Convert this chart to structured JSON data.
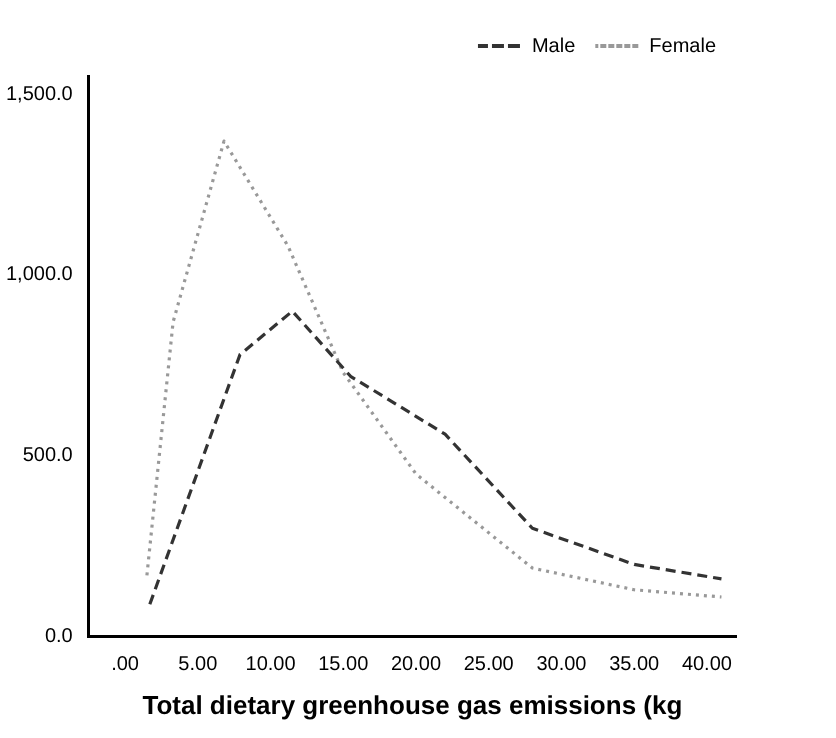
{
  "chart_data": {
    "type": "line",
    "xlabel": "Total dietary greenhouse gas emissions (kg",
    "xlim": [
      -2.5,
      42
    ],
    "xticks": [
      {
        "value": 0,
        "label": ".00"
      },
      {
        "value": 5,
        "label": "5.00"
      },
      {
        "value": 10,
        "label": "10.00"
      },
      {
        "value": 15,
        "label": "15.00"
      },
      {
        "value": 20,
        "label": "20.00"
      },
      {
        "value": 25,
        "label": "25.00"
      },
      {
        "value": 30,
        "label": "30.00"
      },
      {
        "value": 35,
        "label": "35.00"
      },
      {
        "value": 40,
        "label": "40.00"
      }
    ],
    "ylim": [
      0,
      1550
    ],
    "yticks": [
      {
        "value": 0,
        "label": "0.0"
      },
      {
        "value": 500,
        "label": "500.0"
      },
      {
        "value": 1000,
        "label": "1,000.0"
      },
      {
        "value": 1500,
        "label": "1,500.0"
      }
    ],
    "grid": false,
    "legend": "top right",
    "marker": "none",
    "series": [
      {
        "name": "Male",
        "color": "#333333",
        "line_style": "dashed",
        "x": [
          1.7,
          7.9,
          11.5,
          15.5,
          22,
          28,
          35,
          41
        ],
        "values": [
          90,
          780,
          900,
          720,
          560,
          300,
          200,
          160
        ]
      },
      {
        "name": "Female",
        "color": "#999999",
        "line_style": "dotted",
        "x": [
          1.5,
          3.3,
          6.8,
          11.2,
          15,
          20,
          28,
          35,
          41
        ],
        "values": [
          170,
          870,
          1370,
          1080,
          730,
          450,
          190,
          130,
          110
        ]
      }
    ]
  }
}
